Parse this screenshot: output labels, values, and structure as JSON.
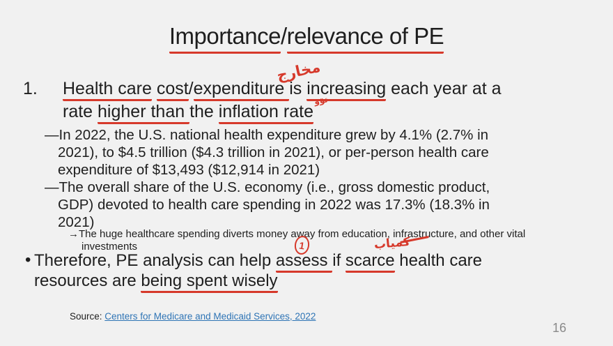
{
  "slide": {
    "colors": {
      "bg": "#f1f1f1",
      "text": "#1e1e1e",
      "ink": "#d6392b",
      "link": "#2e74b5",
      "muted": "#8a8a8a"
    },
    "title_segments": [
      {
        "t": "Importance",
        "u": 1
      },
      {
        "t": "/"
      },
      {
        "t": "relevance of PE",
        "u": 1
      }
    ],
    "item1": {
      "number": "1.",
      "lines": [
        [
          {
            "t": "Health care",
            "u": 1
          },
          {
            "t": " "
          },
          {
            "t": "cost",
            "u": 1
          },
          {
            "t": "/"
          },
          {
            "t": "expenditure ",
            "u": 1
          },
          {
            "t": "is "
          },
          {
            "t": "increasing",
            "u": 1
          },
          {
            "t": " each year at a"
          }
        ],
        [
          {
            "t": "rate "
          },
          {
            "t": "higher than ",
            "u": 1
          },
          {
            "t": "the "
          },
          {
            "t": "inflation rate",
            "u": 1
          }
        ]
      ]
    },
    "sub_bullets": [
      {
        "glyph": "—",
        "lines": [
          "In 2022, the U.S. national health expenditure grew by 4.1% (2.7% in",
          "2021), to $4.5 trillion ($4.3 trillion in 2021), or per-person health care",
          "expenditure of $13,493 ($12,914 in 2021)"
        ]
      },
      {
        "glyph": "—",
        "lines": [
          "The overall share of the U.S. economy (i.e., gross domestic product,",
          "GDP) devoted to health care spending in 2022 was 17.3% (18.3% in",
          "2021)"
        ]
      }
    ],
    "arrow_note": {
      "glyph": "→",
      "lines": [
        "The huge healthcare spending diverts money away from education, infrastructure, and other vital",
        "investments"
      ]
    },
    "conclusion": {
      "glyph": "•",
      "lines": [
        [
          {
            "t": "Therefore, PE analysis can help "
          },
          {
            "t": "assess ",
            "u": 1
          },
          {
            "t": "if "
          },
          {
            "t": "scarce",
            "u": 1
          },
          {
            "t": " health care"
          }
        ],
        [
          {
            "t": "resources are "
          },
          {
            "t": "being spent wisely",
            "u": 1
          }
        ]
      ]
    },
    "source": {
      "label": "Source: ",
      "link_text": "Centers for Medicare and Medicaid Services, 2022"
    },
    "page_number": "16",
    "annotations": {
      "word_above_expenditure": "مخارج",
      "word_above_inflation": "تۆو",
      "circled_number": "1",
      "word_above_scarce": "كمياب"
    }
  }
}
